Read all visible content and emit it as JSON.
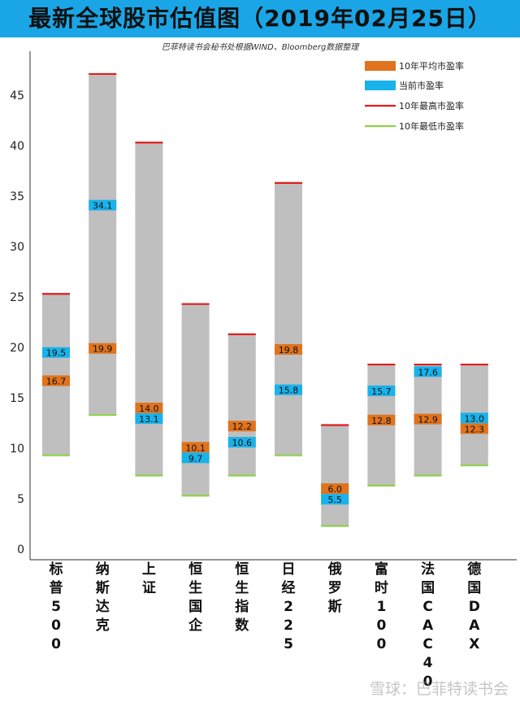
{
  "header": {
    "title": "最新全球股市估值图（2019年02月25日）",
    "subtitle": "巴菲特读书会秘书处根据WIND、Bloomberg数据整理"
  },
  "watermark": "雪球：巴菲特读书会",
  "colors": {
    "title_bg": "#1aa6e6",
    "range_bar": "#c0bfc0",
    "avg": "#e0731c",
    "current": "#19b2ea",
    "high": "#e21c1c",
    "low": "#8fd14a"
  },
  "chart_data": {
    "type": "bar",
    "title": "最新全球股市估值图（2019年02月25日）",
    "ylim": [
      0,
      50
    ],
    "yticks": [
      0,
      5,
      10,
      15,
      20,
      25,
      30,
      35,
      40,
      45
    ],
    "grid": false,
    "legend_position": "top-right",
    "categories": [
      "标普500",
      "纳斯达克",
      "上证",
      "恒生国企",
      "恒生指数",
      "日经225",
      "俄罗斯",
      "富时100",
      "法国CAC40",
      "德国DAX"
    ],
    "legend": [
      "10年平均市盈率",
      "当前市盈率",
      "10年最高市盈率",
      "10年最低市盈率"
    ],
    "series": [
      {
        "name": "10年平均市盈率",
        "values": [
          16.7,
          19.9,
          14.0,
          10.1,
          12.2,
          19.8,
          6.0,
          12.8,
          12.9,
          12.3
        ],
        "labels": [
          "16.7",
          "19.9",
          "14.0",
          "10.1",
          "12.2",
          "19.8",
          "6.0",
          "12.8",
          "12.9",
          "12.3"
        ]
      },
      {
        "name": "当前市盈率",
        "values": [
          19.5,
          34.1,
          13.1,
          9.7,
          10.6,
          15.8,
          5.5,
          15.7,
          17.6,
          13.0
        ],
        "labels": [
          "19.5",
          "34.1",
          "13.1",
          "9.7",
          "10.6",
          "15.8",
          "5.5",
          "15.7",
          "17.6",
          "13.0"
        ]
      },
      {
        "name": "10年最高市盈率",
        "values": [
          25.3,
          47.1,
          40.3,
          24.3,
          21.3,
          36.3,
          12.3,
          18.3,
          18.3,
          18.3
        ]
      },
      {
        "name": "10年最低市盈率",
        "values": [
          9.3,
          13.3,
          7.3,
          5.3,
          7.3,
          9.3,
          2.3,
          6.3,
          7.3,
          8.3
        ]
      }
    ]
  }
}
